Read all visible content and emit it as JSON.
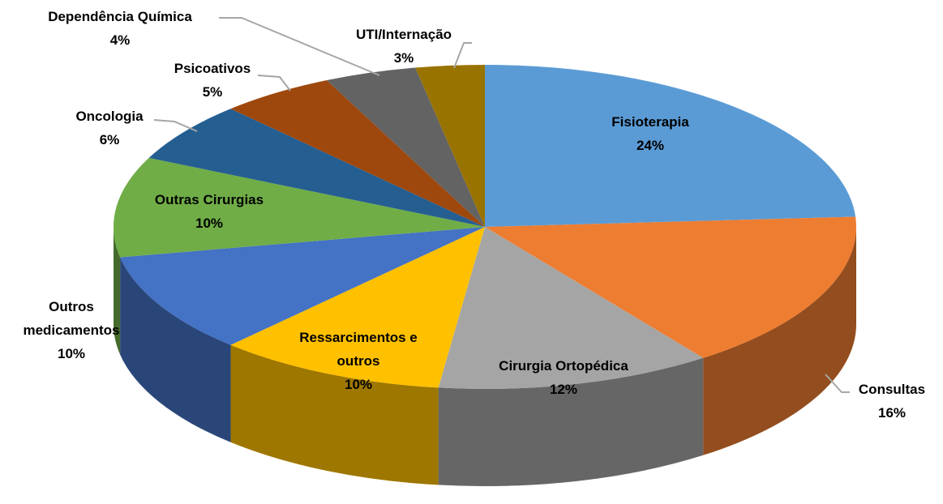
{
  "chart_data": {
    "type": "pie",
    "categories": [
      "Fisioterapia",
      "Consultas",
      "Cirurgia Ortopédica",
      "Ressarcimentos e outros",
      "Outros medicamentos",
      "Outras Cirurgias",
      "Oncologia",
      "Psicoativos",
      "Dependência Química",
      "UTI/Internação"
    ],
    "values": [
      24,
      16,
      12,
      10,
      10,
      10,
      6,
      5,
      4,
      3
    ],
    "value_labels": [
      "24%",
      "16%",
      "12%",
      "10%",
      "10%",
      "10%",
      "6%",
      "5%",
      "4%",
      "3%"
    ],
    "colors": [
      "#5b9bd5",
      "#ed7d31",
      "#a5a5a5",
      "#ffc000",
      "#4472c4",
      "#70ad47",
      "#255e91",
      "#9e480e",
      "#636363",
      "#997300"
    ],
    "legend": false
  }
}
